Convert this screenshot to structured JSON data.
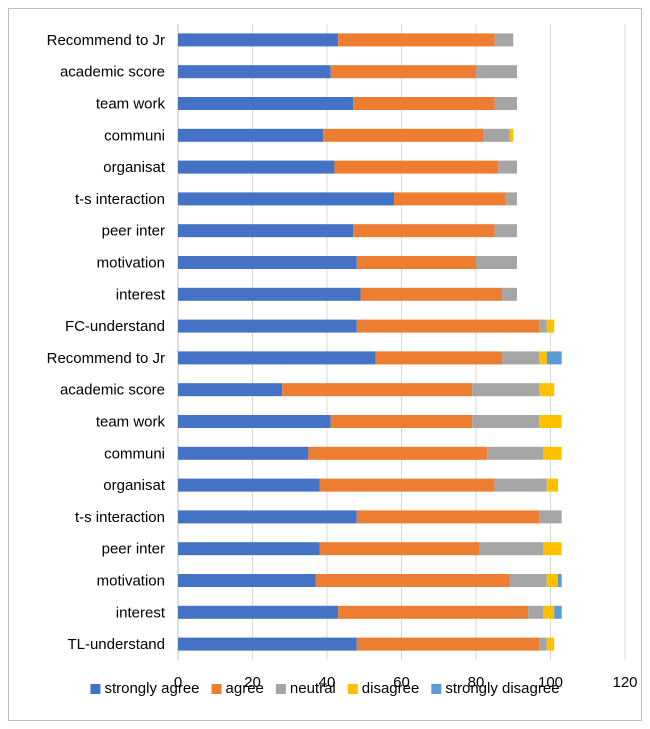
{
  "chart_data": {
    "type": "bar",
    "orientation": "horizontal",
    "stacked": true,
    "title": "",
    "xlabel": "",
    "ylabel": "",
    "xlim": [
      0,
      120
    ],
    "x_ticks": [
      0,
      20,
      40,
      60,
      80,
      100,
      120
    ],
    "grid": "vertical",
    "legend_position": "bottom",
    "categories": [
      "Recommend to Jr",
      "academic score",
      "team work",
      "communi",
      "organisat",
      "t-s interaction",
      "peer inter",
      "motivation",
      "interest",
      "FC-understand",
      "Recommend to Jr",
      "academic score",
      "team work",
      "communi",
      "organisat",
      "t-s interaction",
      "peer inter",
      "motivation",
      "interest",
      "TL-understand"
    ],
    "series": [
      {
        "name": "strongly agree",
        "color": "#4472c4",
        "values": [
          43,
          41,
          47,
          39,
          42,
          58,
          47,
          48,
          49,
          48,
          53,
          28,
          41,
          35,
          38,
          48,
          38,
          37,
          43,
          48
        ]
      },
      {
        "name": "agree",
        "color": "#ed7d31",
        "values": [
          42,
          39,
          38,
          43,
          44,
          30,
          38,
          32,
          38,
          49,
          34,
          51,
          38,
          48,
          47,
          49,
          43,
          52,
          51,
          49
        ]
      },
      {
        "name": "neutral",
        "color": "#a5a5a5",
        "values": [
          5,
          11,
          6,
          7,
          5,
          3,
          6,
          11,
          4,
          2,
          10,
          18,
          18,
          15,
          14,
          6,
          17,
          10,
          4,
          2
        ]
      },
      {
        "name": "disagree",
        "color": "#ffc000",
        "values": [
          0,
          0,
          0,
          1,
          0,
          0,
          0,
          0,
          0,
          2,
          2,
          4,
          6,
          5,
          3,
          0,
          5,
          3,
          3,
          2
        ]
      },
      {
        "name": "strongly disagree",
        "color": "#5b9bd5",
        "values": [
          0,
          0,
          0,
          0,
          0,
          0,
          0,
          0,
          0,
          0,
          4,
          0,
          0,
          0,
          0,
          0,
          0,
          1,
          2,
          0
        ]
      }
    ]
  }
}
